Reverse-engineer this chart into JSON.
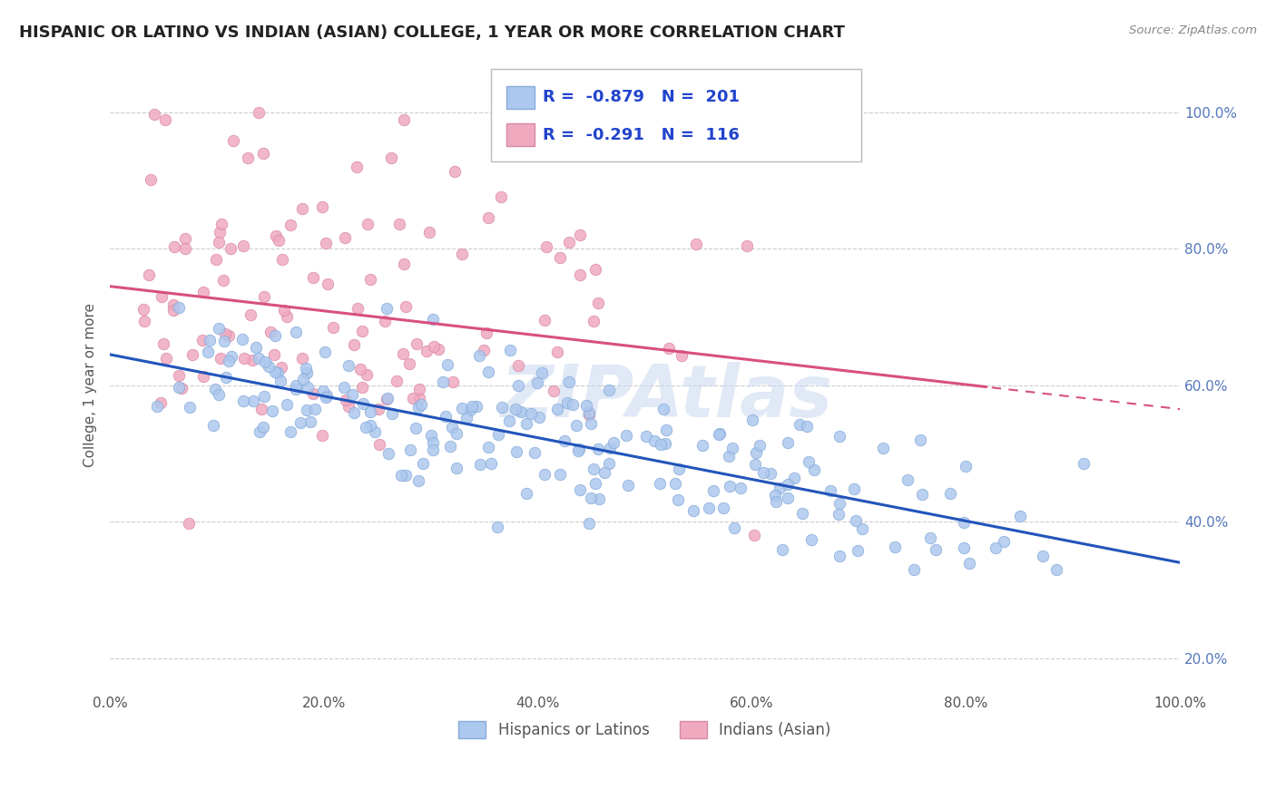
{
  "title": "HISPANIC OR LATINO VS INDIAN (ASIAN) COLLEGE, 1 YEAR OR MORE CORRELATION CHART",
  "source_text": "Source: ZipAtlas.com",
  "ylabel": "College, 1 year or more",
  "xmin": 0.0,
  "xmax": 1.0,
  "ymin": 0.15,
  "ymax": 1.05,
  "blue_R": -0.879,
  "blue_N": 201,
  "pink_R": -0.291,
  "pink_N": 116,
  "blue_color": "#adc8ee",
  "blue_edge": "#85aad8",
  "pink_color": "#f0aac0",
  "pink_edge": "#d888a8",
  "blue_line_color": "#2255bb",
  "pink_line_color": "#d85080",
  "watermark": "ZIPAtlas",
  "legend_label_blue": "Hispanics or Latinos",
  "legend_label_pink": "Indians (Asian)",
  "blue_intercept": 0.645,
  "blue_slope": -0.305,
  "pink_intercept": 0.745,
  "pink_slope": -0.18,
  "marker_size": 9,
  "background_color": "#ffffff",
  "grid_color": "#cccccc",
  "title_color": "#222222",
  "axis_label_color": "#555555",
  "legend_R_color": "#2244cc",
  "tick_color": "#5577bb"
}
